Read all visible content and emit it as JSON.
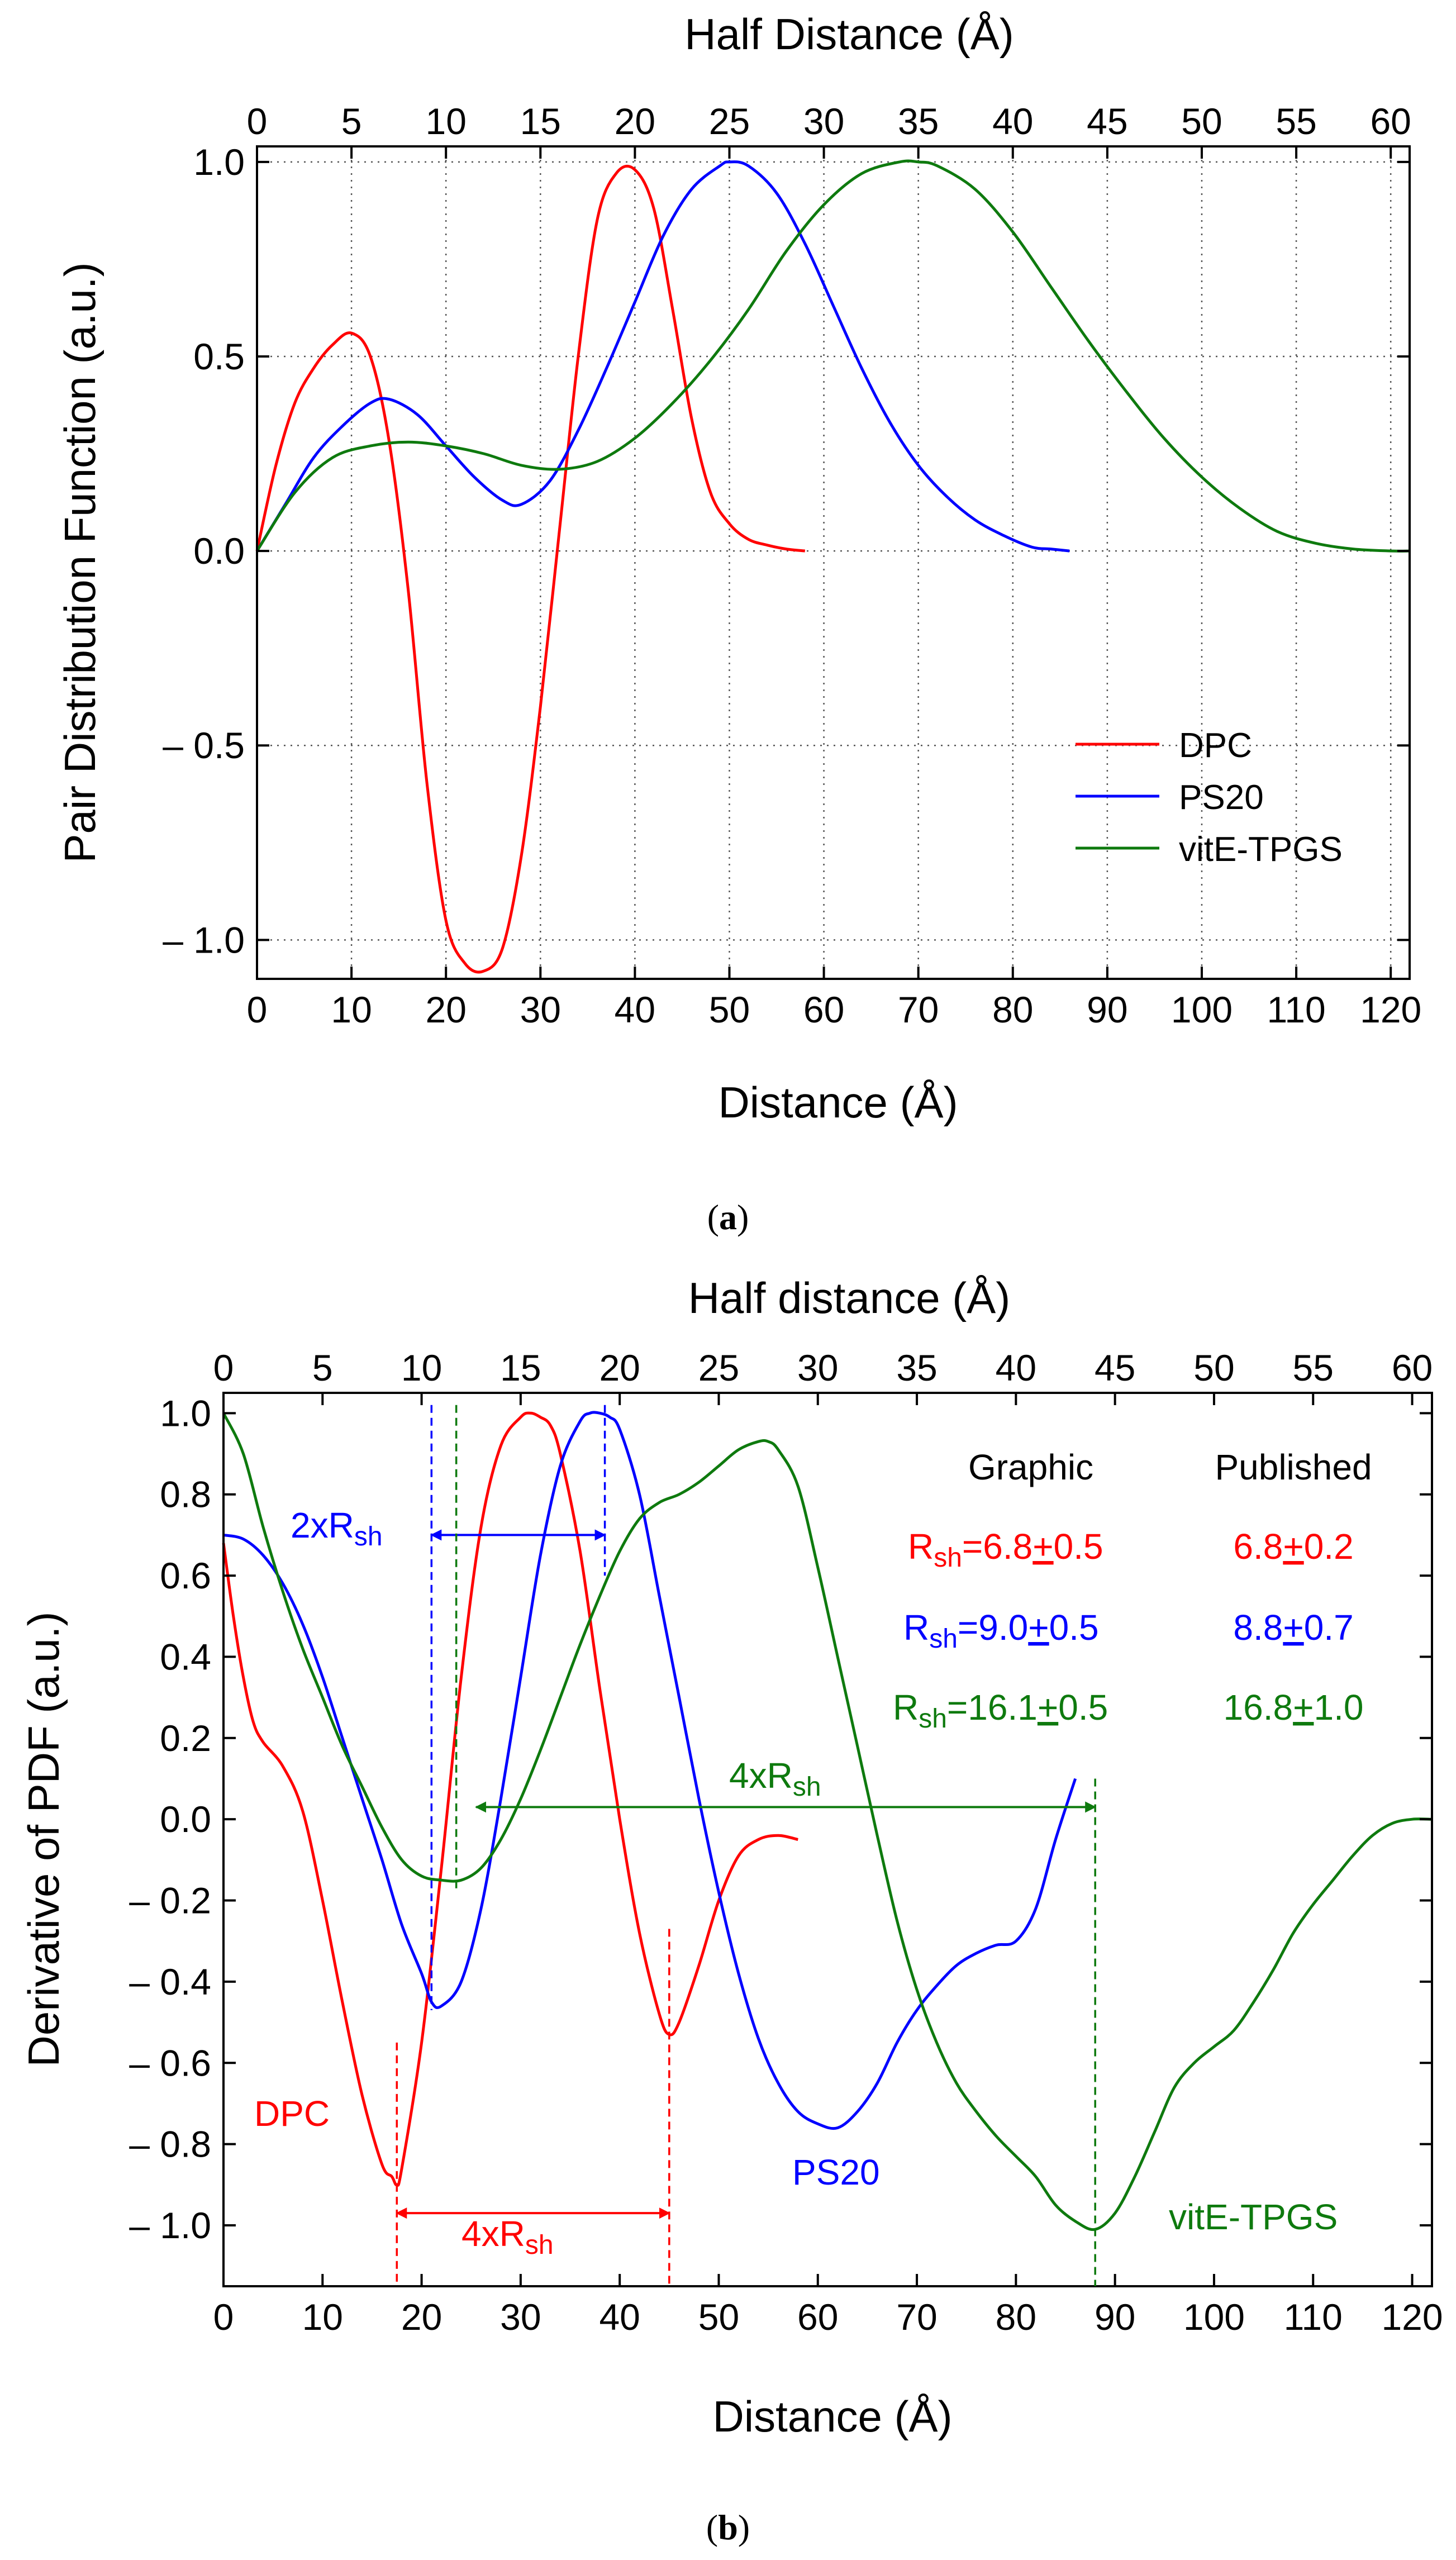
{
  "colors": {
    "DPC": "#ff0000",
    "PS20": "#0000ff",
    "vitE_TPGS": "#0e7a0e",
    "axis": "#000000",
    "grid": "#555555"
  },
  "chart_data": [
    {
      "panel": "(a)",
      "panel_letter": "a",
      "type": "line",
      "title": "",
      "xlabel": "Distance (Å)",
      "top_xlabel": "Half Distance (Å)",
      "ylabel": "Pair Distribution Function (a.u.)",
      "xlim": [
        0,
        122
      ],
      "ylim": [
        -1.1,
        1.04
      ],
      "top_xlim": [
        0,
        61
      ],
      "x_ticks": [
        0,
        10,
        20,
        30,
        40,
        50,
        60,
        70,
        80,
        90,
        100,
        110,
        120
      ],
      "x_tick_labels": [
        "0",
        "10",
        "20",
        "30",
        "40",
        "50",
        "60",
        "70",
        "80",
        "90",
        "100",
        "110",
        "120"
      ],
      "top_ticks": [
        0,
        5,
        10,
        15,
        20,
        25,
        30,
        35,
        40,
        45,
        50,
        55,
        60
      ],
      "top_tick_labels": [
        "0",
        "5",
        "10",
        "15",
        "20",
        "25",
        "30",
        "35",
        "40",
        "45",
        "50",
        "55",
        "60"
      ],
      "y_ticks": [
        1.0,
        0.5,
        0.0,
        -0.5,
        -1.0
      ],
      "y_tick_labels": [
        "1.0",
        "0.5",
        "0.0",
        "– 0.5",
        "– 1.0"
      ],
      "grid": "dotted",
      "legend_position": "lower-right",
      "legend": [
        "DPC",
        "PS20",
        "vitE-TPGS"
      ],
      "series": [
        {
          "name": "DPC",
          "color_key": "DPC",
          "x": [
            0,
            2,
            4,
            6,
            8,
            10,
            12,
            14,
            16,
            18,
            20,
            22,
            24,
            26,
            28,
            30,
            32,
            34,
            36,
            38,
            40,
            42,
            44,
            46,
            48,
            50,
            52,
            54,
            56,
            58
          ],
          "y": [
            0,
            0.22,
            0.38,
            0.47,
            0.53,
            0.56,
            0.5,
            0.28,
            -0.1,
            -0.6,
            -0.95,
            -1.06,
            -1.08,
            -1.02,
            -0.78,
            -0.4,
            0.05,
            0.5,
            0.85,
            0.97,
            0.98,
            0.88,
            0.62,
            0.34,
            0.15,
            0.07,
            0.03,
            0.015,
            0.005,
            0
          ]
        },
        {
          "name": "PS20",
          "color_key": "PS20",
          "x": [
            0,
            3,
            6,
            9,
            12,
            14,
            17,
            20,
            23,
            26,
            28,
            31,
            34,
            37,
            40,
            43,
            46,
            49,
            50,
            52,
            55,
            58,
            61,
            64,
            67,
            70,
            73,
            76,
            79,
            82,
            84,
            86
          ],
          "y": [
            0,
            0.12,
            0.24,
            0.32,
            0.38,
            0.39,
            0.35,
            0.27,
            0.19,
            0.13,
            0.12,
            0.18,
            0.31,
            0.47,
            0.64,
            0.81,
            0.93,
            0.99,
            1.0,
            0.99,
            0.92,
            0.79,
            0.63,
            0.47,
            0.33,
            0.22,
            0.14,
            0.08,
            0.04,
            0.01,
            0.005,
            0
          ]
        },
        {
          "name": "vitE-TPGS",
          "color_key": "vitE_TPGS",
          "x": [
            0,
            4,
            8,
            12,
            16,
            20,
            24,
            28,
            32,
            36,
            40,
            44,
            48,
            52,
            56,
            60,
            64,
            68,
            70,
            72,
            76,
            80,
            84,
            88,
            92,
            96,
            100,
            104,
            108,
            112,
            116,
            120,
            122
          ],
          "y": [
            0,
            0.15,
            0.24,
            0.27,
            0.28,
            0.27,
            0.25,
            0.22,
            0.21,
            0.23,
            0.29,
            0.38,
            0.49,
            0.62,
            0.77,
            0.89,
            0.97,
            1.0,
            1.0,
            0.99,
            0.93,
            0.82,
            0.68,
            0.54,
            0.41,
            0.29,
            0.19,
            0.11,
            0.05,
            0.02,
            0.005,
            0,
            0
          ]
        }
      ]
    },
    {
      "panel": "(b)",
      "panel_letter": "b",
      "type": "line",
      "title": "",
      "xlabel": "Distance (Å)",
      "top_xlabel": "Half distance (Å)",
      "ylabel": "Derivative of PDF (a.u.)",
      "xlim": [
        0,
        122
      ],
      "ylim": [
        -1.15,
        1.05
      ],
      "top_xlim": [
        0,
        61
      ],
      "x_ticks": [
        0,
        10,
        20,
        30,
        40,
        50,
        60,
        70,
        80,
        90,
        100,
        110,
        120
      ],
      "x_tick_labels": [
        "0",
        "10",
        "20",
        "30",
        "40",
        "50",
        "60",
        "70",
        "80",
        "90",
        "100",
        "110",
        "120"
      ],
      "top_ticks": [
        0,
        5,
        10,
        15,
        20,
        25,
        30,
        35,
        40,
        45,
        50,
        55,
        60
      ],
      "top_tick_labels": [
        "0",
        "5",
        "10",
        "15",
        "20",
        "25",
        "30",
        "35",
        "40",
        "45",
        "50",
        "55",
        "60"
      ],
      "y_ticks": [
        1.0,
        0.8,
        0.6,
        0.4,
        0.2,
        0.0,
        -0.2,
        -0.4,
        -0.6,
        -0.8,
        -1.0
      ],
      "y_tick_labels": [
        "1.0",
        "0.8",
        "0.6",
        "0.4",
        "0.2",
        "0.0",
        "– 0.2",
        "– 0.4",
        "– 0.6",
        "– 0.8",
        "– 1.0"
      ],
      "grid": "none",
      "series": [
        {
          "name": "DPC",
          "color_key": "DPC",
          "x": [
            0,
            1,
            2,
            3,
            4,
            6,
            8,
            10,
            12,
            14,
            16,
            17,
            17.5,
            18,
            20,
            22,
            24,
            26,
            28,
            30,
            31,
            32,
            33,
            34,
            36,
            38,
            40,
            42,
            44,
            45,
            46,
            48,
            50,
            52,
            54,
            56,
            58
          ],
          "y": [
            0.68,
            0.5,
            0.35,
            0.24,
            0.19,
            0.13,
            0.02,
            -0.2,
            -0.45,
            -0.68,
            -0.85,
            -0.88,
            -0.9,
            -0.86,
            -0.55,
            -0.12,
            0.35,
            0.72,
            0.92,
            0.99,
            1.0,
            0.99,
            0.97,
            0.9,
            0.66,
            0.32,
            0.0,
            -0.28,
            -0.48,
            -0.53,
            -0.5,
            -0.36,
            -0.2,
            -0.09,
            -0.05,
            -0.04,
            -0.05
          ]
        },
        {
          "name": "PS20",
          "color_key": "PS20",
          "x": [
            0,
            2,
            4,
            6,
            8,
            10,
            12,
            14,
            16,
            18,
            20,
            21,
            22,
            24,
            26,
            28,
            30,
            32,
            34,
            36,
            37,
            38,
            39,
            40,
            42,
            44,
            46,
            48,
            50,
            52,
            54,
            56,
            58,
            60,
            62,
            64,
            66,
            68,
            70,
            72,
            74,
            76,
            78,
            80,
            82,
            84,
            86
          ],
          "y": [
            0.7,
            0.69,
            0.65,
            0.58,
            0.48,
            0.35,
            0.2,
            0.05,
            -0.1,
            -0.26,
            -0.38,
            -0.45,
            -0.46,
            -0.4,
            -0.22,
            0.05,
            0.35,
            0.65,
            0.87,
            0.98,
            1.0,
            1.0,
            0.99,
            0.96,
            0.8,
            0.55,
            0.3,
            0.05,
            -0.18,
            -0.38,
            -0.54,
            -0.65,
            -0.72,
            -0.75,
            -0.76,
            -0.72,
            -0.65,
            -0.55,
            -0.47,
            -0.41,
            -0.36,
            -0.33,
            -0.31,
            -0.3,
            -0.22,
            -0.05,
            0.1
          ]
        },
        {
          "name": "vitE-TPGS",
          "color_key": "vitE_TPGS",
          "x": [
            0,
            2,
            4,
            6,
            8,
            10,
            12,
            14,
            16,
            18,
            20,
            22,
            24,
            26,
            28,
            30,
            32,
            34,
            36,
            38,
            40,
            42,
            44,
            46,
            48,
            50,
            52,
            54,
            55,
            56,
            58,
            60,
            62,
            64,
            66,
            68,
            70,
            72,
            74,
            76,
            78,
            80,
            82,
            84,
            86,
            88,
            90,
            92,
            94,
            96,
            98,
            100,
            102,
            104,
            106,
            108,
            110,
            112,
            114,
            116,
            118,
            120,
            122
          ],
          "y": [
            1.0,
            0.9,
            0.72,
            0.56,
            0.42,
            0.3,
            0.18,
            0.08,
            -0.02,
            -0.1,
            -0.14,
            -0.15,
            -0.15,
            -0.12,
            -0.05,
            0.05,
            0.17,
            0.3,
            0.43,
            0.55,
            0.66,
            0.74,
            0.78,
            0.8,
            0.83,
            0.87,
            0.91,
            0.93,
            0.93,
            0.91,
            0.82,
            0.62,
            0.4,
            0.18,
            -0.04,
            -0.25,
            -0.42,
            -0.55,
            -0.65,
            -0.72,
            -0.78,
            -0.83,
            -0.88,
            -0.95,
            -0.99,
            -1.01,
            -0.97,
            -0.88,
            -0.77,
            -0.66,
            -0.6,
            -0.56,
            -0.52,
            -0.45,
            -0.37,
            -0.28,
            -0.21,
            -0.15,
            -0.09,
            -0.04,
            -0.01,
            0.0,
            0.0
          ]
        }
      ],
      "series_labels": [
        "DPC",
        "PS20",
        "vitE-TPGS"
      ],
      "annotations": {
        "rsh_sub": "sh",
        "dpc_arrow_label": "4xR",
        "ps20_arrow_label": "2xR",
        "vite_arrow_label": "4xR",
        "dpc_arrow": [
          17.5,
          45
        ],
        "ps20_arrow": [
          21,
          38.5
        ],
        "vite_arrow": [
          25.5,
          88
        ],
        "dpc_marks": [
          17.5,
          45
        ],
        "ps20_marks": [
          21,
          38.5
        ],
        "vite_marks": [
          23.5,
          88
        ]
      },
      "results_table": {
        "header_graphic": "Graphic",
        "header_published": "Published",
        "rows": [
          {
            "series": "DPC",
            "prefix": "R",
            "sub": "sh",
            "graphic": "=6.8",
            "pm1": "+",
            "graphic_err": "0.5",
            "published": "6.8",
            "pm2": "+",
            "published_err": "0.2",
            "color_key": "DPC"
          },
          {
            "series": "PS20",
            "prefix": "R",
            "sub": "sh",
            "graphic": "=9.0",
            "pm1": "+",
            "graphic_err": "0.5",
            "published": "8.8",
            "pm2": "+",
            "published_err": "0.7",
            "color_key": "PS20"
          },
          {
            "series": "vitE-TPGS",
            "prefix": "R",
            "sub": "sh",
            "graphic": "=16.1",
            "pm1": "+",
            "graphic_err": "0.5",
            "published": "16.8",
            "pm2": "+",
            "published_err": "1.0",
            "color_key": "vitE_TPGS"
          }
        ]
      }
    }
  ]
}
